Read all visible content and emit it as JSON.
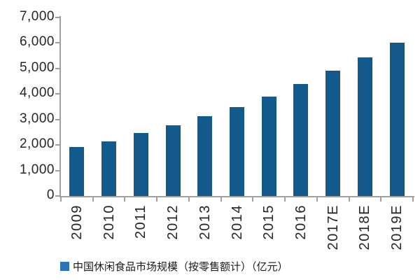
{
  "chart_data": {
    "type": "bar",
    "categories": [
      "2009",
      "2010",
      "2011",
      "2012",
      "2013",
      "2014",
      "2015",
      "2016",
      "2017E",
      "2018E",
      "2019E"
    ],
    "values": [
      1930,
      2135,
      2460,
      2770,
      3130,
      3495,
      3910,
      4390,
      4920,
      5435,
      6000
    ],
    "title": "",
    "xlabel": "",
    "ylabel": "",
    "ylim": [
      0,
      7000
    ],
    "ytick_step": 1000,
    "ytick_labels": [
      "0",
      "1,000",
      "2,000",
      "3,000",
      "4,000",
      "5,000",
      "6,000",
      "7,000"
    ],
    "grid": false,
    "legend_position": "bottom",
    "legend_label": "中国休闲食品市场规模（按零售额计）（亿元）",
    "colors": {
      "bar": "#14598C",
      "legend_marker": "#2E74B5",
      "axis": "#A0A0A0",
      "text": "#262626",
      "background": "#FFFFFF"
    }
  }
}
